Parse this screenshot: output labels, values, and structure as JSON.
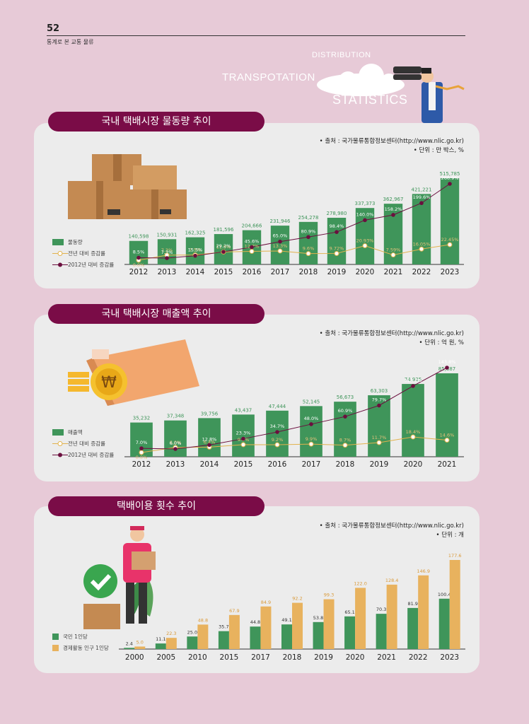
{
  "page": {
    "number": "52",
    "subtitle": "통계로 본 교통 물류"
  },
  "hero": {
    "word1": "DISTRIBUTION",
    "word2": "TRANSPOTATION",
    "word3": "STATISTICS"
  },
  "colors": {
    "bar": "#3f955a",
    "bar_alt": "#e8b25e",
    "line_yoy": "#e2b24d",
    "line_base": "#6b0f3e",
    "pill": "#7a0c47"
  },
  "sections": [
    {
      "title": "국내 택배시장 물동량 추이",
      "source": "• 출처 : 국가물류통합정보센터(http://www.nlic.go.kr)",
      "unit": "• 단위 : 만 박스, %",
      "legend": [
        "물동량",
        "전년 대비 증감률",
        "2012년 대비 증감률"
      ]
    },
    {
      "title": "국내 택배시장 매출액 추이",
      "source": "• 출처 : 국가물류통합정보센터(http://www.nlic.go.kr)",
      "unit": "• 단위 : 억 원, %",
      "legend": [
        "매출액",
        "전년 대비 증감률",
        "2012년 대비 증감률"
      ]
    },
    {
      "title": "택배이용 횟수 추이",
      "source": "• 출처 : 국가물류통합정보센터(http://www.nlic.go.kr)",
      "unit": "• 단위 : 개",
      "legend": [
        "국민 1인당",
        "경제활동 인구 1인당"
      ]
    }
  ],
  "chart_data": [
    {
      "type": "bar",
      "categories": [
        "2012",
        "2013",
        "2014",
        "2015",
        "2016",
        "2017",
        "2018",
        "2019",
        "2020",
        "2021",
        "2022",
        "2023"
      ],
      "values": [
        140598,
        150931,
        162325,
        181596,
        204666,
        231946,
        254278,
        278980,
        337373,
        362967,
        421221,
        515785
      ],
      "value_labels": [
        "140,598",
        "150,931",
        "162,325",
        "181,596",
        "204,666",
        "231,946",
        "254,278",
        "278,980",
        "337,373",
        "362,967",
        "421,221",
        "515,785"
      ],
      "lines": [
        {
          "name": "전년 대비 증감률",
          "values": [
            0.0,
            7.3,
            7.5,
            11.9,
            12.7,
            13.3,
            9.6,
            9.72,
            20.93,
            7.59,
            16.05,
            22.45
          ],
          "labels": [
            "0.0%",
            "7.3%",
            "7.5%",
            "11.9%",
            "12.7%",
            "13.3%",
            "9.6%",
            "9.72%",
            "20.93%",
            "7.59%",
            "16.05%",
            "22.45%"
          ]
        },
        {
          "name": "2012년 대비 증감률",
          "values": [
            8.5,
            7.3,
            15.5,
            29.2,
            45.6,
            65.0,
            80.9,
            98.4,
            140.0,
            158.2,
            199.6,
            266.9
          ],
          "labels": [
            "8.5%",
            "7.3%",
            "15.5%",
            "29.2%",
            "45.6%",
            "65.0%",
            "80.9%",
            "98.4%",
            "140.0%",
            "158.2%",
            "199.6%",
            "266.9%"
          ]
        }
      ]
    },
    {
      "type": "bar",
      "categories": [
        "2012",
        "2013",
        "2014",
        "2015",
        "2016",
        "2017",
        "2018",
        "2019",
        "2020",
        "2021"
      ],
      "values": [
        35232,
        37348,
        39756,
        43437,
        47444,
        52145,
        56673,
        63303,
        74925,
        85887
      ],
      "value_labels": [
        "35,232",
        "37,348",
        "39,756",
        "43,437",
        "47,444",
        "52,145",
        "56,673",
        "63,303",
        "74,925",
        "85,887"
      ],
      "lines": [
        {
          "name": "전년 대비 증감률",
          "values": [
            0.0,
            6.0,
            6.4,
            9.3,
            9.2,
            9.9,
            8.7,
            11.7,
            18.4,
            14.6
          ],
          "labels": [
            "0.0%",
            "6.0%",
            "6.4%",
            "9.3%",
            "9.2%",
            "9.9%",
            "8.7%",
            "11.7%",
            "18.4%",
            "14.6%"
          ]
        },
        {
          "name": "2012년 대비 증감률",
          "values": [
            7.0,
            6.0,
            12.8,
            23.3,
            34.7,
            48.0,
            60.9,
            79.7,
            112.7,
            143.8
          ],
          "labels": [
            "7.0%",
            "6.0%",
            "12.8%",
            "23.3%",
            "34.7%",
            "48.0%",
            "60.9%",
            "79.7%",
            "112.7%",
            "143.8%"
          ]
        }
      ]
    },
    {
      "type": "bar",
      "categories": [
        "2000",
        "2005",
        "2010",
        "2015",
        "2017",
        "2018",
        "2019",
        "2020",
        "2021",
        "2022",
        "2023"
      ],
      "series": [
        {
          "name": "국민 1인당",
          "values": [
            2.4,
            11.1,
            25.0,
            35.7,
            44.8,
            49.1,
            53.8,
            65.1,
            70.3,
            81.9,
            100.4
          ],
          "labels": [
            "2.4",
            "11.1",
            "25.0",
            "35.7",
            "44.8",
            "49.1",
            "53.8",
            "65.1",
            "70.3",
            "81.9",
            "100.4"
          ]
        },
        {
          "name": "경제활동 인구 1인당",
          "values": [
            5.0,
            22.3,
            48.8,
            67.9,
            84.9,
            92.2,
            99.3,
            122.0,
            128.4,
            146.9,
            177.6
          ],
          "labels": [
            "5.0",
            "22.3",
            "48.8",
            "67.9",
            "84.9",
            "92.2",
            "99.3",
            "122.0",
            "128.4",
            "146.9",
            "177.6"
          ]
        }
      ]
    }
  ]
}
